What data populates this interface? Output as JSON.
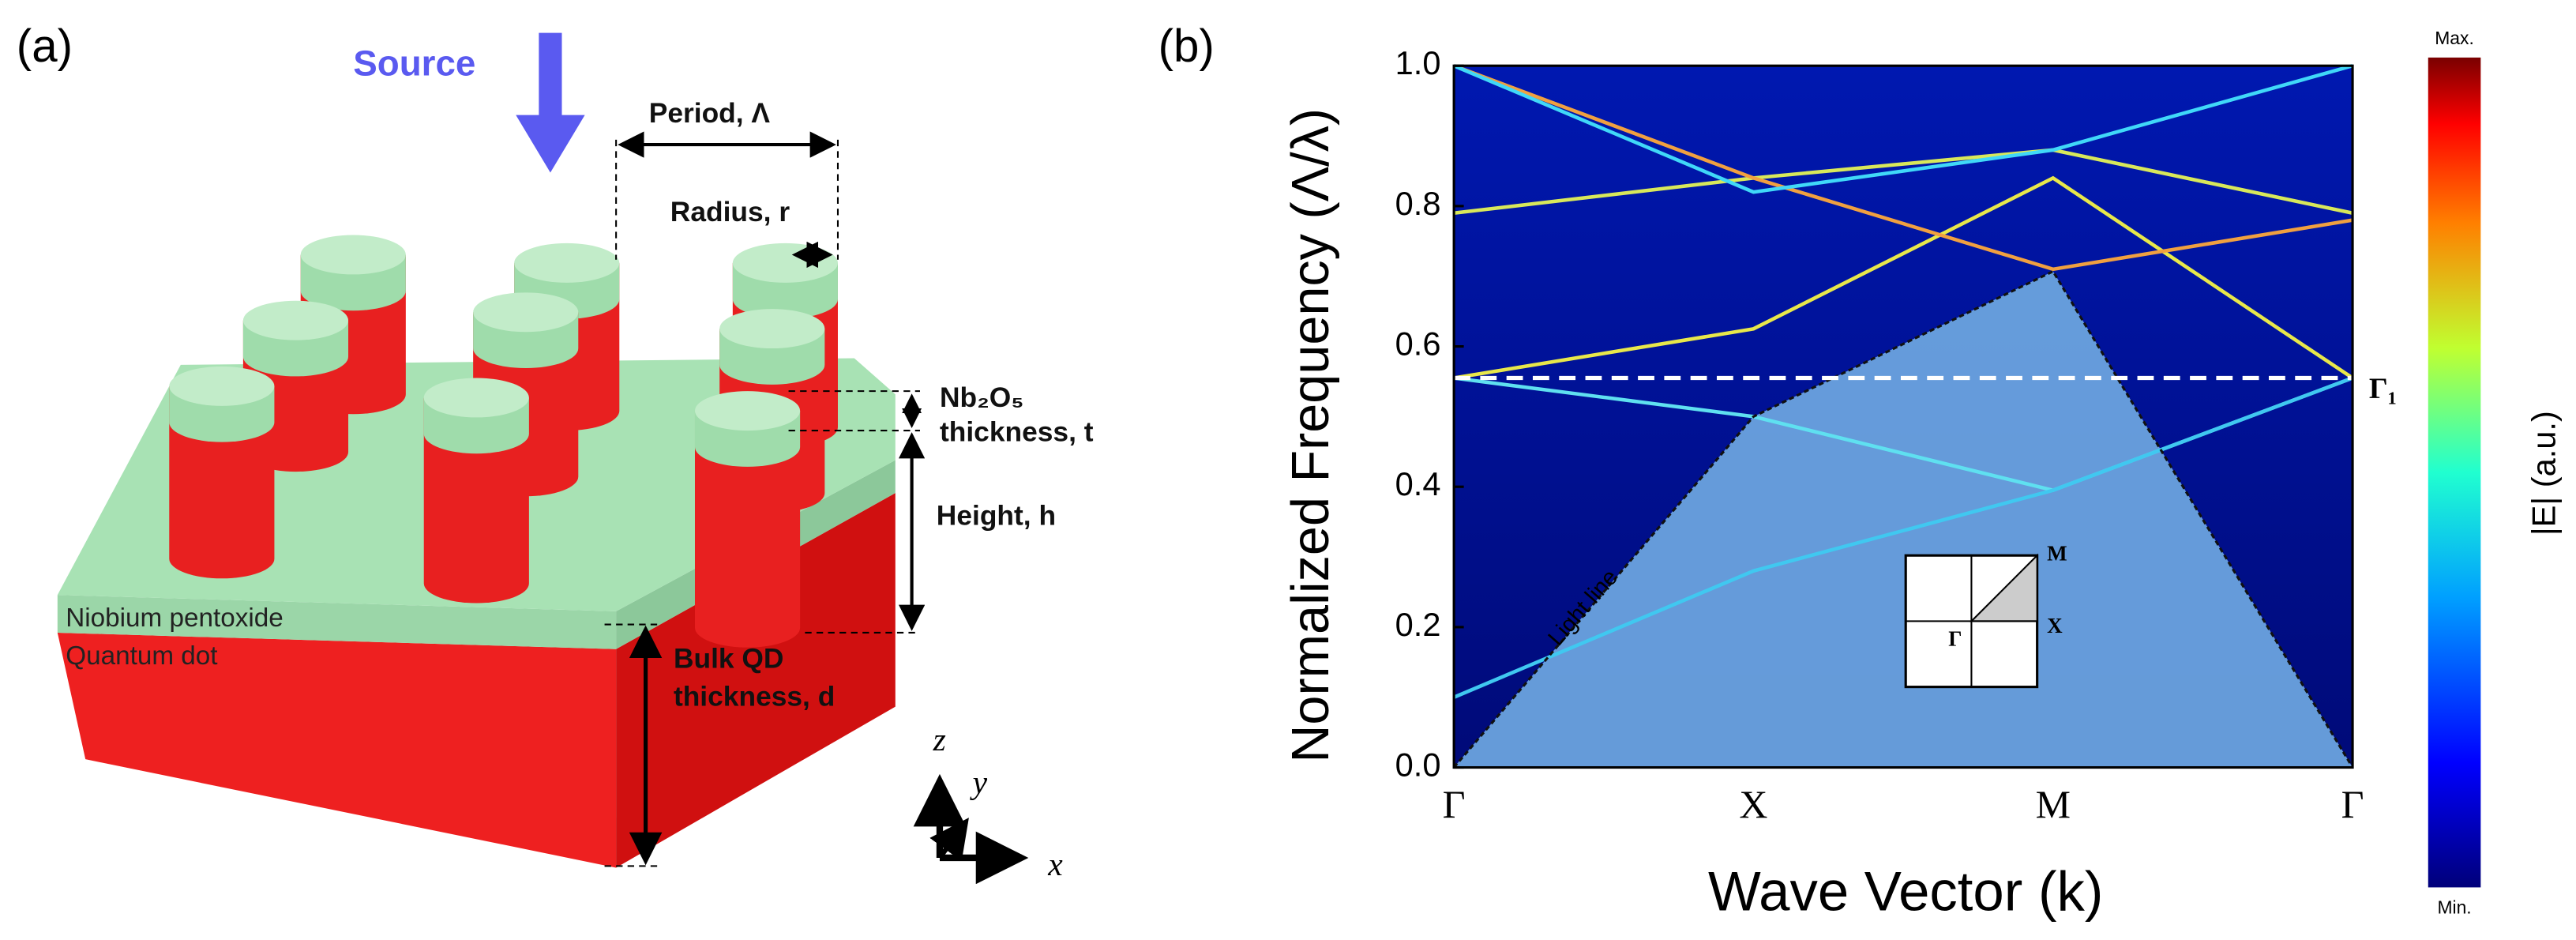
{
  "panel_a": {
    "label": "(a)",
    "source": "Source",
    "period": "Period, Λ",
    "radius": "Radius, r",
    "layer_thickness_1": "Nb₂O₅",
    "layer_thickness_2": "thickness, t",
    "height": "Height, h",
    "layer_name": "Niobium pentoxide",
    "base_name": "Quantum dot",
    "bulk_1": "Bulk QD",
    "bulk_2": "thickness, d",
    "axis_z": "z",
    "axis_y": "y",
    "axis_x": "x"
  },
  "chart_data": {
    "type": "band",
    "panel_label": "(b)",
    "x_label": "Wave Vector (k)",
    "y_label": "Normalized Frequency (Λ/λ)",
    "categories": [
      "Γ",
      "X",
      "M",
      "Γ"
    ],
    "ylim": [
      0,
      1
    ],
    "yticks": [
      {
        "value": 0,
        "label": "0.0"
      },
      0.2,
      0.4,
      0.6,
      0.8,
      {
        "value": 1,
        "label": "1.0"
      }
    ],
    "light_line": {
      "label": "Light line",
      "values": [
        0,
        0.5,
        0.707,
        0
      ]
    },
    "bands": [
      {
        "values": [
          0.555,
          0.625,
          0.84,
          0.555
        ],
        "color": "#e8e84a"
      },
      {
        "values": [
          0.555,
          0.5,
          0.395,
          0.555
        ],
        "color": "#5fe0f0"
      },
      {
        "values": [
          0.79,
          0.84,
          0.88,
          0.79
        ],
        "color": "#d8e85a"
      },
      {
        "values": [
          1.0,
          0.84,
          0.71,
          0.78
        ],
        "color": "#f0a040"
      },
      {
        "values": [
          1.0,
          0.82,
          0.88,
          1.0
        ],
        "color": "#40d8f8"
      },
      {
        "values": [
          0.1,
          0.28,
          0.395,
          0.555
        ],
        "color": "#40c8f0"
      }
    ],
    "reference_line": {
      "label": "Γ₁",
      "value": 0.555
    },
    "inset_labels": [
      "M",
      "X",
      "Γ"
    ],
    "colorbar": {
      "label": "|E| (a.u.)",
      "max_label": "Max.",
      "min_label": "Min."
    }
  }
}
